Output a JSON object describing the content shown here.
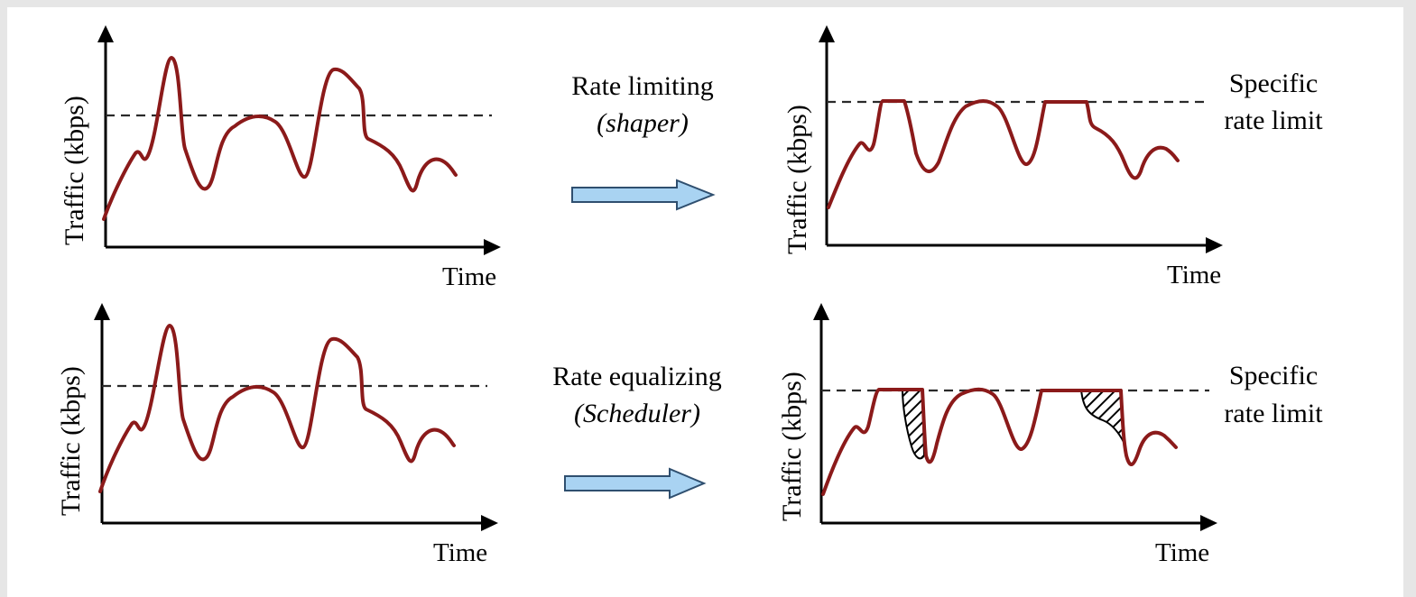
{
  "axis": {
    "y_label": "Traffic (kbps)",
    "x_label": "Time"
  },
  "top": {
    "caption_line1": "Rate limiting",
    "caption_line2": "(shaper)",
    "side_line1": "Specific",
    "side_line2": "rate limit"
  },
  "bottom": {
    "caption_line1": "Rate equalizing",
    "caption_line2": "(Scheduler)",
    "side_line1": "Specific",
    "side_line2": "rate limit"
  },
  "colors": {
    "traffic_line": "#8b1a1a",
    "arrow_fill": "#a9d3f2",
    "arrow_stroke": "#2f4f6f",
    "limit_line": "#2a2a2a"
  }
}
